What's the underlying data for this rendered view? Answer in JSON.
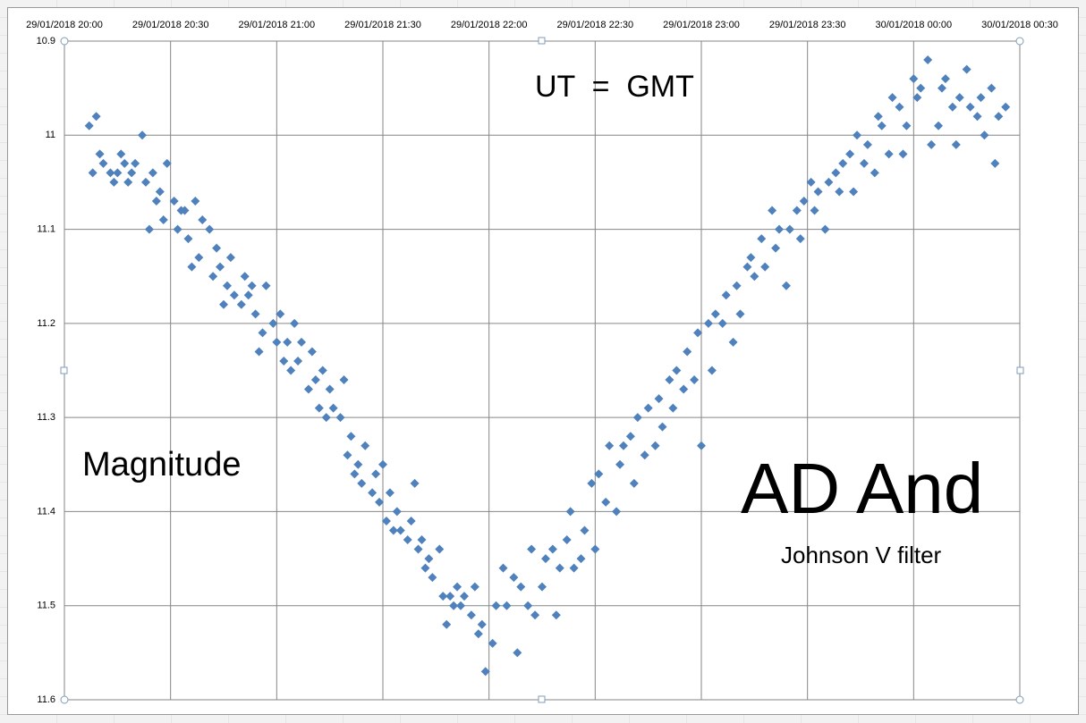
{
  "chart_data": {
    "type": "scatter",
    "annotations": [
      "UT  =  GMT",
      "Magnitude",
      "AD And",
      "Johnson V filter"
    ],
    "color": "#4f81bd",
    "marker": "diamond",
    "grid": true,
    "y_inverted": true,
    "xlim": [
      "2018-01-29 20:00",
      "2018-01-30 00:30"
    ],
    "xticks": [
      {
        "value": "2018-01-29 20:00",
        "label": "29/01/2018 20:00"
      },
      {
        "value": "2018-01-29 20:30",
        "label": "29/01/2018 20:30"
      },
      {
        "value": "2018-01-29 21:00",
        "label": "29/01/2018 21:00"
      },
      {
        "value": "2018-01-29 21:30",
        "label": "29/01/2018 21:30"
      },
      {
        "value": "2018-01-29 22:00",
        "label": "29/01/2018 22:00"
      },
      {
        "value": "2018-01-29 22:30",
        "label": "29/01/2018 22:30"
      },
      {
        "value": "2018-01-29 23:00",
        "label": "29/01/2018 23:00"
      },
      {
        "value": "2018-01-29 23:30",
        "label": "29/01/2018 23:30"
      },
      {
        "value": "2018-01-30 00:00",
        "label": "30/01/2018 00:00"
      },
      {
        "value": "2018-01-30 00:30",
        "label": "30/01/2018 00:30"
      }
    ],
    "ylim": [
      10.9,
      11.6
    ],
    "yticks": [
      10.9,
      11,
      11.1,
      11.2,
      11.3,
      11.4,
      11.5,
      11.6
    ],
    "x": [
      "2018-01-29 20:07",
      "2018-01-29 20:08",
      "2018-01-29 20:09",
      "2018-01-29 20:10",
      "2018-01-29 20:11",
      "2018-01-29 20:13",
      "2018-01-29 20:14",
      "2018-01-29 20:15",
      "2018-01-29 20:16",
      "2018-01-29 20:17",
      "2018-01-29 20:18",
      "2018-01-29 20:19",
      "2018-01-29 20:20",
      "2018-01-29 20:22",
      "2018-01-29 20:23",
      "2018-01-29 20:24",
      "2018-01-29 20:25",
      "2018-01-29 20:26",
      "2018-01-29 20:27",
      "2018-01-29 20:28",
      "2018-01-29 20:29",
      "2018-01-29 20:31",
      "2018-01-29 20:32",
      "2018-01-29 20:33",
      "2018-01-29 20:34",
      "2018-01-29 20:35",
      "2018-01-29 20:36",
      "2018-01-29 20:37",
      "2018-01-29 20:38",
      "2018-01-29 20:39",
      "2018-01-29 20:41",
      "2018-01-29 20:42",
      "2018-01-29 20:43",
      "2018-01-29 20:44",
      "2018-01-29 20:45",
      "2018-01-29 20:46",
      "2018-01-29 20:47",
      "2018-01-29 20:48",
      "2018-01-29 20:50",
      "2018-01-29 20:51",
      "2018-01-29 20:52",
      "2018-01-29 20:53",
      "2018-01-29 20:54",
      "2018-01-29 20:55",
      "2018-01-29 20:56",
      "2018-01-29 20:57",
      "2018-01-29 20:59",
      "2018-01-29 21:00",
      "2018-01-29 21:01",
      "2018-01-29 21:02",
      "2018-01-29 21:03",
      "2018-01-29 21:04",
      "2018-01-29 21:05",
      "2018-01-29 21:06",
      "2018-01-29 21:07",
      "2018-01-29 21:09",
      "2018-01-29 21:10",
      "2018-01-29 21:11",
      "2018-01-29 21:12",
      "2018-01-29 21:13",
      "2018-01-29 21:14",
      "2018-01-29 21:15",
      "2018-01-29 21:16",
      "2018-01-29 21:18",
      "2018-01-29 21:19",
      "2018-01-29 21:20",
      "2018-01-29 21:21",
      "2018-01-29 21:22",
      "2018-01-29 21:23",
      "2018-01-29 21:24",
      "2018-01-29 21:25",
      "2018-01-29 21:27",
      "2018-01-29 21:28",
      "2018-01-29 21:29",
      "2018-01-29 21:30",
      "2018-01-29 21:31",
      "2018-01-29 21:32",
      "2018-01-29 21:33",
      "2018-01-29 21:34",
      "2018-01-29 21:35",
      "2018-01-29 21:37",
      "2018-01-29 21:38",
      "2018-01-29 21:39",
      "2018-01-29 21:40",
      "2018-01-29 21:41",
      "2018-01-29 21:42",
      "2018-01-29 21:43",
      "2018-01-29 21:44",
      "2018-01-29 21:46",
      "2018-01-29 21:47",
      "2018-01-29 21:48",
      "2018-01-29 21:49",
      "2018-01-29 21:50",
      "2018-01-29 21:51",
      "2018-01-29 21:52",
      "2018-01-29 21:53",
      "2018-01-29 21:55",
      "2018-01-29 21:56",
      "2018-01-29 21:57",
      "2018-01-29 21:58",
      "2018-01-29 21:59",
      "2018-01-29 22:01",
      "2018-01-29 22:02",
      "2018-01-29 22:04",
      "2018-01-29 22:05",
      "2018-01-29 22:07",
      "2018-01-29 22:08",
      "2018-01-29 22:09",
      "2018-01-29 22:11",
      "2018-01-29 22:12",
      "2018-01-29 22:13",
      "2018-01-29 22:15",
      "2018-01-29 22:16",
      "2018-01-29 22:18",
      "2018-01-29 22:19",
      "2018-01-29 22:20",
      "2018-01-29 22:22",
      "2018-01-29 22:23",
      "2018-01-29 22:24",
      "2018-01-29 22:26",
      "2018-01-29 22:27",
      "2018-01-29 22:29",
      "2018-01-29 22:30",
      "2018-01-29 22:31",
      "2018-01-29 22:33",
      "2018-01-29 22:34",
      "2018-01-29 22:36",
      "2018-01-29 22:37",
      "2018-01-29 22:38",
      "2018-01-29 22:40",
      "2018-01-29 22:41",
      "2018-01-29 22:42",
      "2018-01-29 22:44",
      "2018-01-29 22:45",
      "2018-01-29 22:47",
      "2018-01-29 22:48",
      "2018-01-29 22:49",
      "2018-01-29 22:51",
      "2018-01-29 22:52",
      "2018-01-29 22:53",
      "2018-01-29 22:55",
      "2018-01-29 22:56",
      "2018-01-29 22:58",
      "2018-01-29 22:59",
      "2018-01-29 23:00",
      "2018-01-29 23:02",
      "2018-01-29 23:03",
      "2018-01-29 23:04",
      "2018-01-29 23:06",
      "2018-01-29 23:07",
      "2018-01-29 23:09",
      "2018-01-29 23:10",
      "2018-01-29 23:11",
      "2018-01-29 23:13",
      "2018-01-29 23:14",
      "2018-01-29 23:15",
      "2018-01-29 23:17",
      "2018-01-29 23:18",
      "2018-01-29 23:20",
      "2018-01-29 23:21",
      "2018-01-29 23:22",
      "2018-01-29 23:24",
      "2018-01-29 23:25",
      "2018-01-29 23:27",
      "2018-01-29 23:28",
      "2018-01-29 23:29",
      "2018-01-29 23:31",
      "2018-01-29 23:32",
      "2018-01-29 23:33",
      "2018-01-29 23:35",
      "2018-01-29 23:36",
      "2018-01-29 23:38",
      "2018-01-29 23:39",
      "2018-01-29 23:40",
      "2018-01-29 23:42",
      "2018-01-29 23:43",
      "2018-01-29 23:44",
      "2018-01-29 23:46",
      "2018-01-29 23:47",
      "2018-01-29 23:49",
      "2018-01-29 23:50",
      "2018-01-29 23:51",
      "2018-01-29 23:53",
      "2018-01-29 23:54",
      "2018-01-29 23:56",
      "2018-01-29 23:57",
      "2018-01-29 23:58",
      "2018-01-30 00:00",
      "2018-01-30 00:01",
      "2018-01-30 00:02",
      "2018-01-30 00:04",
      "2018-01-30 00:05",
      "2018-01-30 00:07",
      "2018-01-30 00:08",
      "2018-01-30 00:09",
      "2018-01-30 00:11",
      "2018-01-30 00:12",
      "2018-01-30 00:13",
      "2018-01-30 00:15",
      "2018-01-30 00:16",
      "2018-01-30 00:18",
      "2018-01-30 00:19",
      "2018-01-30 00:20",
      "2018-01-30 00:22",
      "2018-01-30 00:23",
      "2018-01-30 00:24",
      "2018-01-30 00:26"
    ],
    "values": [
      10.99,
      11.04,
      10.98,
      11.02,
      11.03,
      11.04,
      11.05,
      11.04,
      11.02,
      11.03,
      11.05,
      11.04,
      11.03,
      11.0,
      11.05,
      11.1,
      11.04,
      11.07,
      11.06,
      11.09,
      11.03,
      11.07,
      11.1,
      11.08,
      11.08,
      11.11,
      11.14,
      11.07,
      11.13,
      11.09,
      11.1,
      11.15,
      11.12,
      11.14,
      11.18,
      11.16,
      11.13,
      11.17,
      11.18,
      11.15,
      11.17,
      11.16,
      11.19,
      11.23,
      11.21,
      11.16,
      11.2,
      11.22,
      11.19,
      11.24,
      11.22,
      11.25,
      11.2,
      11.24,
      11.22,
      11.27,
      11.23,
      11.26,
      11.29,
      11.25,
      11.3,
      11.27,
      11.29,
      11.3,
      11.26,
      11.34,
      11.32,
      11.36,
      11.35,
      11.37,
      11.33,
      11.38,
      11.36,
      11.39,
      11.35,
      11.41,
      11.38,
      11.42,
      11.4,
      11.42,
      11.43,
      11.41,
      11.37,
      11.44,
      11.43,
      11.46,
      11.45,
      11.47,
      11.44,
      11.49,
      11.52,
      11.49,
      11.5,
      11.48,
      11.5,
      11.49,
      11.51,
      11.48,
      11.53,
      11.52,
      11.57,
      11.54,
      11.5,
      11.46,
      11.5,
      11.47,
      11.55,
      11.48,
      11.5,
      11.44,
      11.51,
      11.48,
      11.45,
      11.44,
      11.51,
      11.46,
      11.43,
      11.4,
      11.46,
      11.45,
      11.42,
      11.37,
      11.44,
      11.36,
      11.39,
      11.33,
      11.4,
      11.35,
      11.33,
      11.32,
      11.37,
      11.3,
      11.34,
      11.29,
      11.33,
      11.28,
      11.31,
      11.26,
      11.29,
      11.25,
      11.27,
      11.23,
      11.26,
      11.21,
      11.33,
      11.2,
      11.25,
      11.19,
      11.2,
      11.17,
      11.22,
      11.16,
      11.19,
      11.14,
      11.13,
      11.15,
      11.11,
      11.14,
      11.08,
      11.12,
      11.1,
      11.16,
      11.1,
      11.08,
      11.11,
      11.07,
      11.05,
      11.08,
      11.06,
      11.1,
      11.05,
      11.04,
      11.06,
      11.03,
      11.02,
      11.06,
      11.0,
      11.03,
      11.01,
      11.04,
      10.98,
      10.99,
      11.02,
      10.96,
      10.97,
      11.02,
      10.99,
      10.94,
      10.96,
      10.95,
      10.92,
      11.01,
      10.99,
      10.95,
      10.94,
      10.97,
      11.01,
      10.96,
      10.93,
      10.97,
      10.98,
      10.96,
      11.0,
      10.95,
      11.03,
      10.98,
      10.97
    ]
  }
}
